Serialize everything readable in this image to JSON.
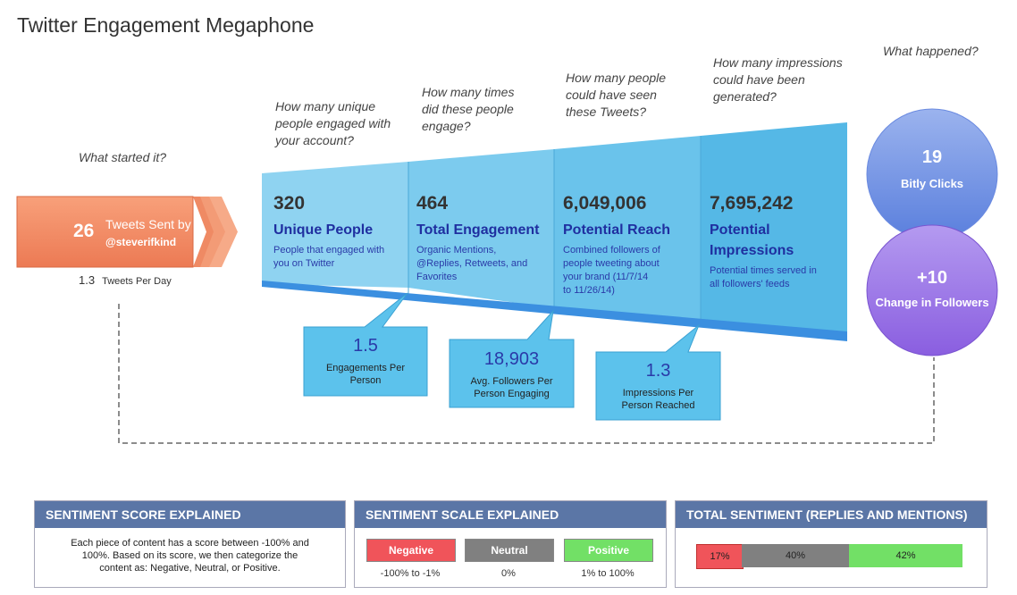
{
  "title": "Twitter Engagement Megaphone",
  "questions": {
    "start": "What started it?",
    "unique": [
      "How many unique",
      "people engaged with",
      "your account?"
    ],
    "times": [
      "How many times",
      "did these people",
      "engage?"
    ],
    "people": [
      "How many people",
      "could have seen",
      "these Tweets?"
    ],
    "impressions": [
      "How many impressions",
      "could have been",
      "generated?"
    ],
    "happened": "What happened?"
  },
  "tweets": {
    "count": "26",
    "label": "Tweets Sent by",
    "handle": "@steverifkind",
    "per_day_value": "1.3",
    "per_day_label": "Tweets Per Day"
  },
  "segments": [
    {
      "number": "320",
      "name": "Unique People",
      "desc": [
        "People that engaged with",
        "you on Twitter"
      ]
    },
    {
      "number": "464",
      "name": "Total Engagement",
      "desc": [
        "Organic Mentions,",
        "@Replies, Retweets, and",
        "Favorites"
      ]
    },
    {
      "number": "6,049,006",
      "name": "Potential Reach",
      "desc": [
        "Combined followers of",
        "people tweeting about",
        "your brand (11/7/14",
        "to 11/26/14)"
      ]
    },
    {
      "number": "7,695,242",
      "name": "Potential",
      "name2": "Impressions",
      "desc": [
        "Potential times served in",
        "all followers' feeds"
      ]
    }
  ],
  "callouts": [
    {
      "number": "1.5",
      "label": [
        "Engagements Per",
        "Person"
      ]
    },
    {
      "number": "18,903",
      "label": [
        "Avg. Followers Per",
        "Person Engaging"
      ]
    },
    {
      "number": "1.3",
      "label": [
        "Impressions Per",
        "Person Reached"
      ]
    }
  ],
  "circles": {
    "bitly": {
      "number": "19",
      "label": "Bitly Clicks"
    },
    "followers": {
      "number": "+10",
      "label": "Change in Followers"
    }
  },
  "panels": {
    "score": {
      "heading": "SENTIMENT SCORE EXPLAINED",
      "body": [
        "Each piece of content has a score between -100% and",
        "100%. Based on its score, we then categorize the",
        "content as: Negative, Neutral, or Positive."
      ]
    },
    "scale": {
      "heading": "SENTIMENT SCALE EXPLAINED",
      "items": [
        {
          "label": "Negative",
          "range": "-100% to -1%",
          "color": "#f0545a"
        },
        {
          "label": "Neutral",
          "range": "0%",
          "color": "#808080"
        },
        {
          "label": "Positive",
          "range": "1% to 100%",
          "color": "#72e066"
        }
      ]
    },
    "total": {
      "heading": "TOTAL SENTIMENT (REPLIES AND MENTIONS)",
      "bars": [
        {
          "label": "17%",
          "value": 17,
          "color": "#f0545a"
        },
        {
          "label": "40%",
          "value": 40,
          "color": "#808080"
        },
        {
          "label": "42%",
          "value": 42,
          "color": "#72e066"
        }
      ]
    }
  }
}
